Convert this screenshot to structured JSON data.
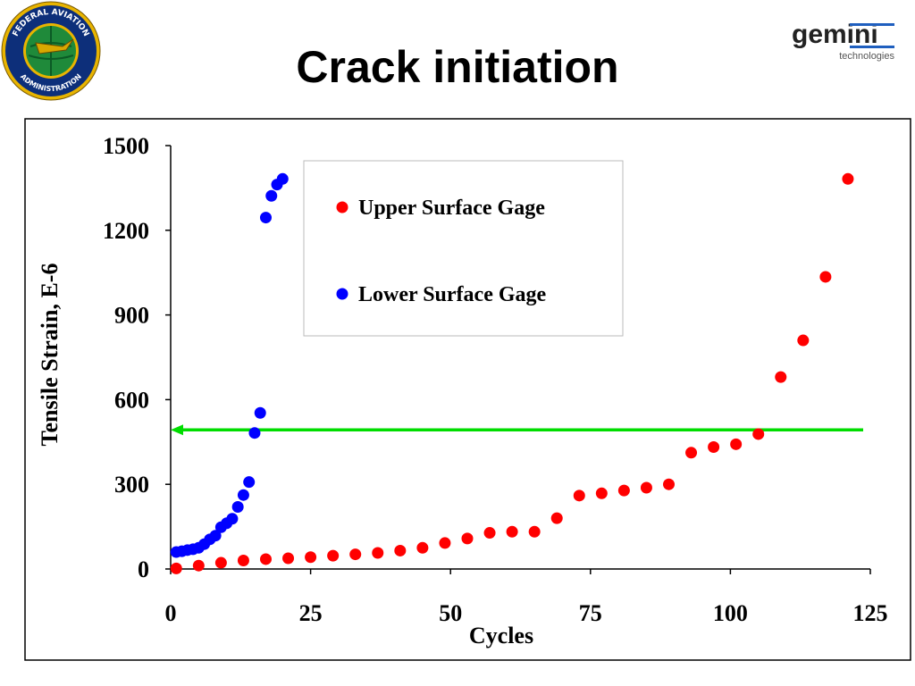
{
  "slide": {
    "title": "Crack initiation",
    "faa_logo_text_top": "FEDERAL AVIATION",
    "faa_logo_text_bottom": "ADMINISTRATION",
    "gemini_logo_main": "gemini",
    "gemini_logo_sub": "technologies"
  },
  "chart_data": {
    "type": "scatter",
    "xlabel": "Cycles",
    "ylabel": "Tensile Strain, E-6",
    "xlim": [
      0,
      125
    ],
    "ylim": [
      0,
      1500
    ],
    "xticks": [
      "0",
      "25",
      "50",
      "75",
      "100",
      "125"
    ],
    "yticks": [
      "0",
      "300",
      "600",
      "900",
      "1200",
      "1500"
    ],
    "grid": false,
    "legend_position": "top-center",
    "series": [
      {
        "name": "Upper Surface Gage",
        "color": "#ff0000",
        "x": [
          1,
          5,
          9,
          13,
          17,
          21,
          25,
          29,
          33,
          37,
          41,
          45,
          49,
          53,
          57,
          61,
          65,
          69,
          73,
          77,
          81,
          85,
          89,
          93,
          97,
          101,
          105,
          109,
          113,
          117,
          121
        ],
        "y": [
          2,
          12,
          22,
          30,
          35,
          38,
          42,
          47,
          52,
          57,
          65,
          75,
          92,
          108,
          128,
          132,
          132,
          180,
          260,
          268,
          278,
          288,
          300,
          412,
          432,
          442,
          478,
          680,
          810,
          1035,
          1382
        ]
      },
      {
        "name": "Lower Surface Gage",
        "color": "#0000ff",
        "x": [
          1,
          2,
          3,
          4,
          5,
          6,
          7,
          8,
          9,
          10,
          11,
          12,
          13,
          14,
          15,
          16,
          17,
          18,
          19,
          20
        ],
        "y": [
          60,
          63,
          67,
          70,
          75,
          88,
          105,
          118,
          148,
          162,
          178,
          220,
          262,
          308,
          482,
          553,
          1245,
          1322,
          1362,
          1382
        ]
      }
    ],
    "reference_line": {
      "y": 493,
      "color": "#00dd00",
      "direction": "left-arrow"
    }
  }
}
